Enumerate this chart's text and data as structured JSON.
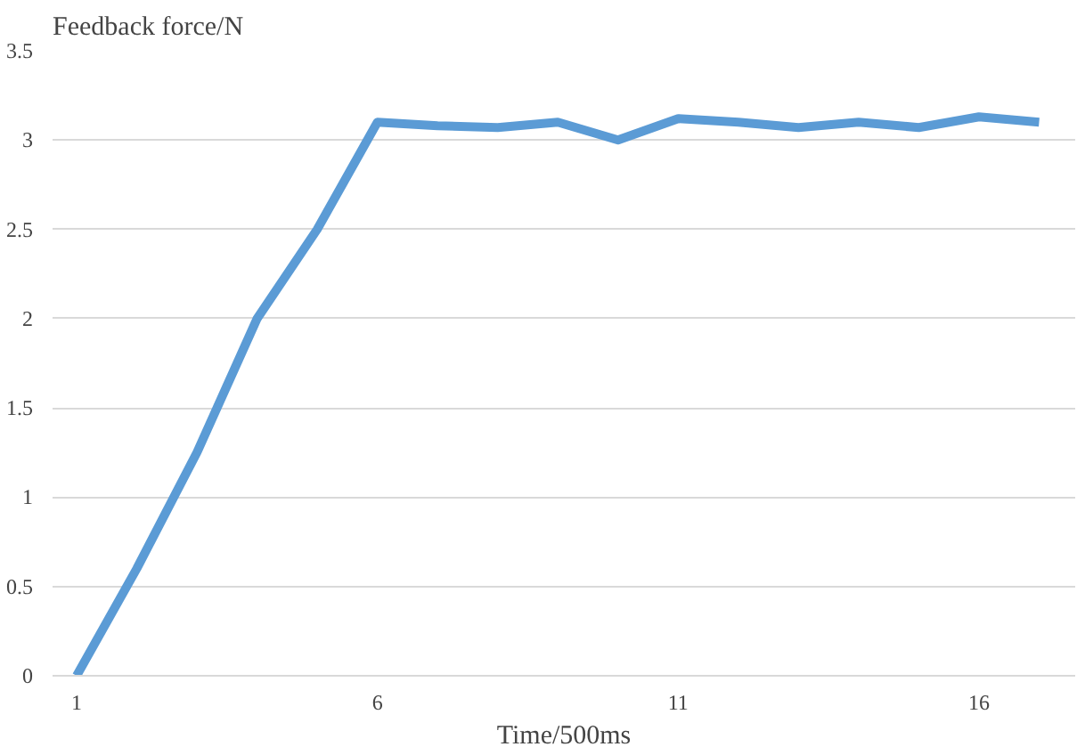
{
  "chart_data": {
    "type": "line",
    "ylabel": "Feedback force/N",
    "xlabel": "Time/500ms",
    "x": [
      1,
      2,
      3,
      4,
      5,
      6,
      7,
      8,
      9,
      10,
      11,
      12,
      13,
      14,
      15,
      16,
      17
    ],
    "series": [
      {
        "color": "#5b9bd5",
        "values": [
          0,
          0.6,
          1.25,
          2.0,
          2.5,
          3.1,
          3.08,
          3.07,
          3.1,
          3.0,
          3.12,
          3.1,
          3.07,
          3.1,
          3.07,
          3.13,
          3.1
        ]
      }
    ],
    "xlim": [
      0.6,
      17.6
    ],
    "xticks": [
      1,
      6,
      11,
      16
    ],
    "ylim": [
      0,
      3.5
    ],
    "yticks": [
      0,
      0.5,
      1,
      1.5,
      2,
      2.5,
      3,
      3.5
    ],
    "grid": "y",
    "marker": "none",
    "line_style": "solid"
  }
}
